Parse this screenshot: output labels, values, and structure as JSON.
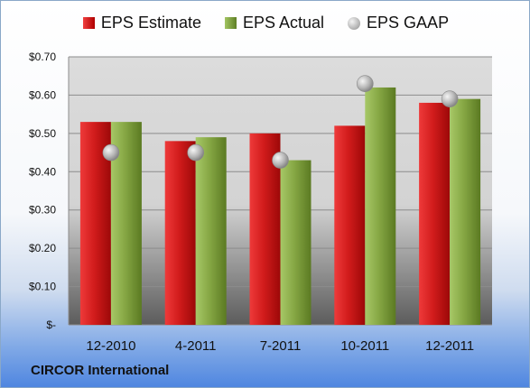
{
  "chart_data": {
    "type": "bar",
    "title": "",
    "xlabel": "",
    "ylabel": "",
    "categories": [
      "12-2010",
      "4-2011",
      "7-2011",
      "10-2011",
      "12-2011"
    ],
    "series": [
      {
        "name": "EPS Estimate",
        "kind": "bar",
        "color": "#c81818",
        "values": [
          0.53,
          0.48,
          0.5,
          0.52,
          0.58
        ]
      },
      {
        "name": "EPS Actual",
        "kind": "bar",
        "color": "#7d9c3a",
        "values": [
          0.53,
          0.49,
          0.43,
          0.62,
          0.59
        ]
      },
      {
        "name": "EPS GAAP",
        "kind": "marker",
        "color": "#a0a0a0",
        "values": [
          0.45,
          0.45,
          0.43,
          0.63,
          0.59
        ]
      }
    ],
    "ylim": [
      0,
      0.7
    ],
    "yticks": [
      0,
      0.1,
      0.2,
      0.3,
      0.4,
      0.5,
      0.6,
      0.7
    ],
    "ytick_labels": [
      "$-",
      "$0.10",
      "$0.20",
      "$0.30",
      "$0.40",
      "$0.50",
      "$0.60",
      "$0.70"
    ],
    "grid": true,
    "legend_position": "top"
  },
  "legend": {
    "estimate_label": "EPS Estimate",
    "actual_label": "EPS Actual",
    "gaap_label": "EPS GAAP"
  },
  "footer": {
    "company": "CIRCOR International"
  }
}
